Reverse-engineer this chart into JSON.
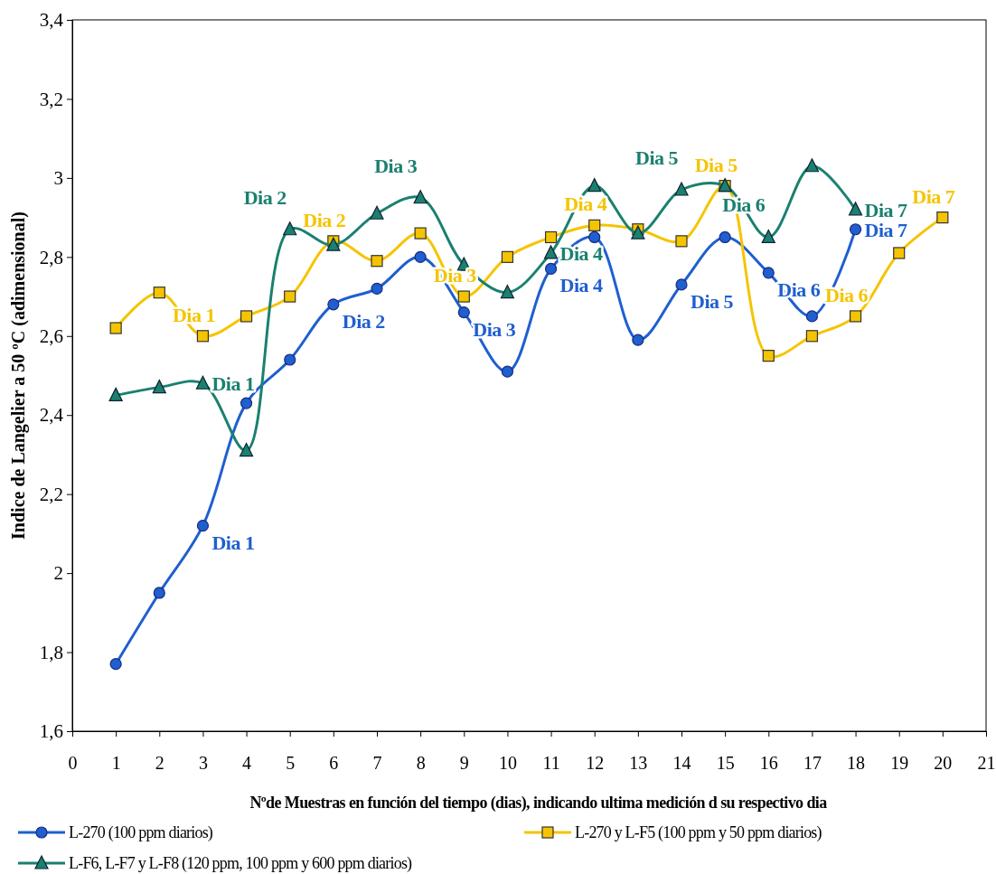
{
  "chart_data": {
    "type": "line",
    "xlabel": "Nºde Muestras en función del tiempo (dias), indicando ultima medición d su respectivo dia",
    "ylabel": "Indice de Langelier a 50 ºC (adimensional)",
    "xlim": [
      0,
      21
    ],
    "xticks": [
      0,
      1,
      2,
      3,
      4,
      5,
      6,
      7,
      8,
      9,
      10,
      11,
      12,
      13,
      14,
      15,
      16,
      17,
      18,
      19,
      20,
      21
    ],
    "ylim": [
      1.6,
      3.4
    ],
    "yticks": [
      {
        "value": 1.6,
        "label": "1,6"
      },
      {
        "value": 1.8,
        "label": "1,8"
      },
      2,
      {
        "value": 2.2,
        "label": "2,2"
      },
      {
        "value": 2.4,
        "label": "2,4"
      },
      {
        "value": 2.6,
        "label": "2,6"
      },
      {
        "value": 2.8,
        "label": "2,8"
      },
      3,
      {
        "value": 3.2,
        "label": "3,2"
      },
      {
        "value": 3.4,
        "label": "3,4"
      }
    ],
    "grid": false,
    "legend": "bottom",
    "line_style": "solid",
    "series": [
      {
        "name": "L-270 (100 ppm diarios)",
        "color": "#1f5fcf",
        "marker": "circle",
        "x": [
          1,
          2,
          3,
          4,
          5,
          6,
          7,
          8,
          9,
          10,
          11,
          12,
          13,
          14,
          15,
          16,
          17,
          18
        ],
        "values": [
          1.77,
          1.95,
          2.12,
          2.43,
          2.54,
          2.68,
          2.72,
          2.8,
          2.66,
          2.51,
          2.77,
          2.85,
          2.59,
          2.73,
          2.85,
          2.76,
          2.65,
          2.87
        ]
      },
      {
        "name": "L-270 y L-F5 (100 ppm y 50 ppm diarios)",
        "color": "#f5c400",
        "marker": "square",
        "x": [
          1,
          2,
          3,
          4,
          5,
          6,
          7,
          8,
          9,
          10,
          11,
          12,
          13,
          14,
          15,
          16,
          17,
          18,
          19,
          20
        ],
        "values": [
          2.62,
          2.71,
          2.6,
          2.65,
          2.7,
          2.84,
          2.79,
          2.86,
          2.7,
          2.8,
          2.85,
          2.88,
          2.87,
          2.84,
          2.98,
          2.55,
          2.6,
          2.65,
          2.81,
          2.9
        ]
      },
      {
        "name": "L-F6, L-F7 y L-F8 (120 ppm, 100 ppm y 600 ppm diarios)",
        "color": "#1a8070",
        "marker": "triangle",
        "x": [
          1,
          2,
          3,
          4,
          5,
          6,
          7,
          8,
          9,
          10,
          11,
          12,
          13,
          14,
          15,
          16,
          17,
          18
        ],
        "values": [
          2.45,
          2.47,
          2.48,
          2.31,
          2.87,
          2.83,
          2.91,
          2.95,
          2.78,
          2.71,
          2.81,
          2.98,
          2.86,
          2.97,
          2.98,
          2.85,
          3.03,
          2.92
        ]
      }
    ],
    "annotations": [
      {
        "text": "Dia 1",
        "x": 3,
        "y": 2.12
      },
      {
        "text": "Dia 2",
        "x": 6,
        "y": 2.68
      },
      {
        "text": "Dia 3",
        "x": 9,
        "y": 2.66
      },
      {
        "text": "Dia 4",
        "x": 11,
        "y": 2.77
      },
      {
        "text": "Dia 5",
        "x": 14,
        "y": 2.73
      },
      {
        "text": "Dia 6",
        "x": 16,
        "y": 2.76
      },
      {
        "text": "Dia 7",
        "x": 18,
        "y": 2.87
      },
      {
        "text": "Dia 1",
        "x": 3,
        "y": 2.6
      },
      {
        "text": "Dia 2",
        "x": 6,
        "y": 2.84
      },
      {
        "text": "Dia 3",
        "x": 9,
        "y": 2.7
      },
      {
        "text": "Dia 4",
        "x": 12,
        "y": 2.88
      },
      {
        "text": "Dia 5",
        "x": 15,
        "y": 2.98
      },
      {
        "text": "Dia 6",
        "x": 18,
        "y": 2.65
      },
      {
        "text": "Dia 7",
        "x": 20,
        "y": 2.9
      },
      {
        "text": "Dia 1",
        "x": 3,
        "y": 2.48
      },
      {
        "text": "Dia 2",
        "x": 5,
        "y": 2.87
      },
      {
        "text": "Dia 3",
        "x": 8,
        "y": 2.95
      },
      {
        "text": "Dia 4",
        "x": 11,
        "y": 2.81
      },
      {
        "text": "Dia 5",
        "x": 14,
        "y": 2.97
      },
      {
        "text": "Dia 6",
        "x": 16,
        "y": 2.85
      },
      {
        "text": "Dia 7",
        "x": 18,
        "y": 2.92
      }
    ]
  }
}
